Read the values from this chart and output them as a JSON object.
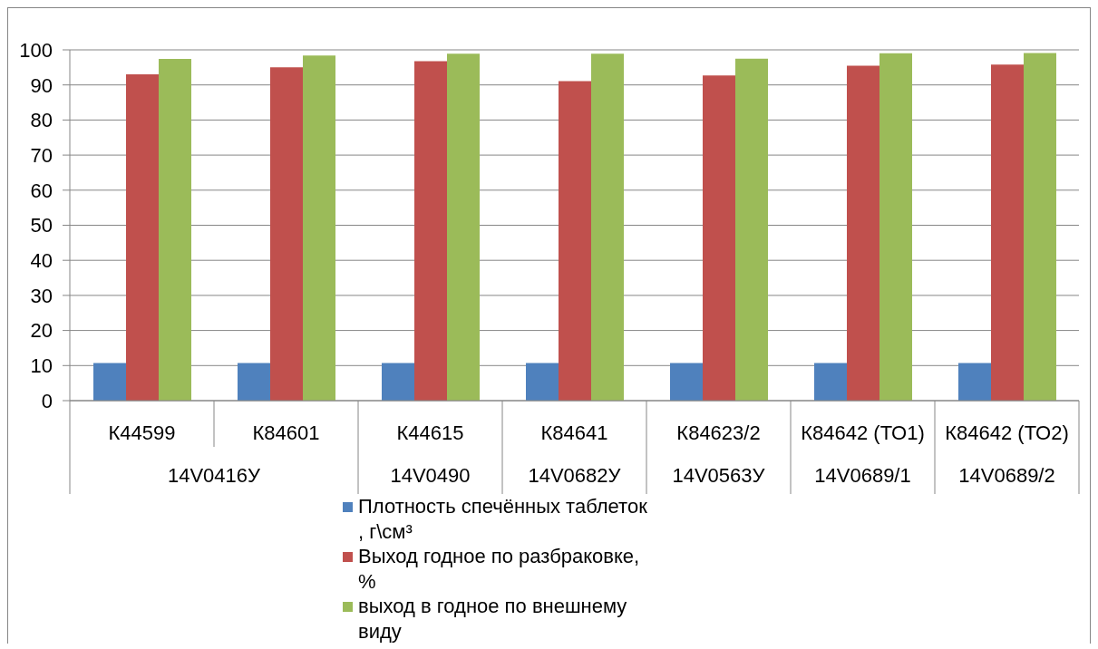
{
  "chart_data": {
    "type": "bar",
    "categories": [
      "К44599",
      "К84601",
      "К44615",
      "К84641",
      "К84623/2",
      "К84642 (ТО1)",
      "К84642 (ТО2)"
    ],
    "series": [
      {
        "name": "Плотность спечённых таблеток , г\\см³",
        "color": "#4f81bd",
        "values": [
          10.7,
          10.7,
          10.7,
          10.7,
          10.7,
          10.7,
          10.7
        ]
      },
      {
        "name": "Выход годное по разбраковке, %",
        "color": "#c0504d",
        "values": [
          93,
          95,
          96.8,
          91.1,
          92.7,
          95.5,
          95.8
        ]
      },
      {
        "name": "выход в годное по внешнему виду",
        "color": "#9bbb59",
        "values": [
          97.4,
          98.4,
          98.9,
          98.9,
          97.5,
          99,
          99.1
        ]
      }
    ],
    "ylim": [
      0,
      100
    ],
    "yticks": [
      0,
      10,
      20,
      30,
      40,
      50,
      60,
      70,
      80,
      90,
      100
    ],
    "grid": "y",
    "legend": "bottom",
    "annotations": [
      "14V0416У",
      "14V0490",
      "14V0682У",
      "14V0563У",
      "14V0689/1",
      "14V0689/2"
    ]
  }
}
